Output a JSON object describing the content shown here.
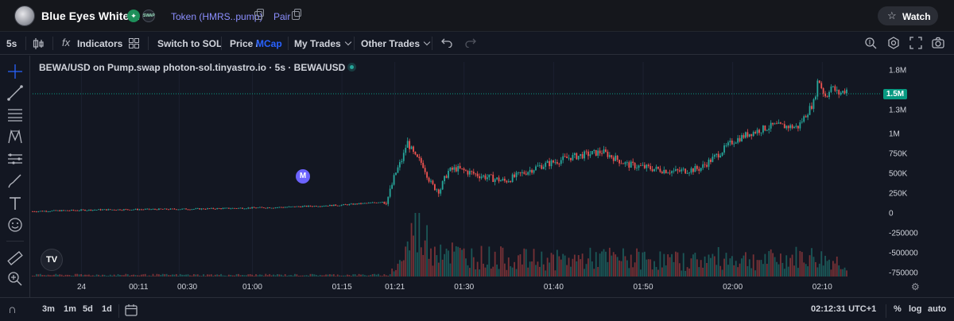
{
  "header": {
    "token_name": "Blue Eyes White…",
    "token_link": "Token (HMRS..pump)",
    "pair_link": "Pair",
    "swap_badge": "SWAP",
    "watch_label": "Watch"
  },
  "toolbar": {
    "interval": "5s",
    "indicators": "Indicators",
    "fx": "fx",
    "switch": "Switch to SOL",
    "price": "Price /",
    "mcap": "MCap",
    "my_trades": "My Trades",
    "other_trades": "Other Trades"
  },
  "chart": {
    "title": "BEWA/USD on Pump.swap photon-sol.tinyastro.io · 5s · BEWA/USD",
    "marker": "M",
    "tv_logo": "TV",
    "current_price": "1.5M",
    "accent": "#089981",
    "up_color": "#26a69a",
    "down_color": "#ef5350"
  },
  "chart_data": {
    "type": "candlestick",
    "y_axis_labels": [
      "1.8M",
      "1.5M",
      "1.3M",
      "1M",
      "750K",
      "500K",
      "250K",
      "0",
      "-250000",
      "-500000",
      "-750000"
    ],
    "x_axis_labels": [
      "24",
      "00:11",
      "00:30",
      "01:00",
      "01:15",
      "01:21",
      "01:30",
      "01:40",
      "01:50",
      "02:00",
      "02:10"
    ],
    "ylim": [
      -800000,
      1900000
    ],
    "current_value": 1500000,
    "price_series": {
      "x": [
        0,
        0.08,
        0.2,
        0.3,
        0.38,
        0.42,
        0.435,
        0.44,
        0.445,
        0.455,
        0.46,
        0.47,
        0.476,
        0.48,
        0.49,
        0.5,
        0.51,
        0.52,
        0.55,
        0.58,
        0.62,
        0.66,
        0.7,
        0.73,
        0.76,
        0.79,
        0.82,
        0.84,
        0.86,
        0.88,
        0.91,
        0.94,
        0.96,
        0.965,
        0.97,
        0.975,
        0.98,
        0.99,
        1.0
      ],
      "y": [
        20000,
        40000,
        50000,
        70000,
        100000,
        130000,
        150000,
        300000,
        480000,
        700000,
        900000,
        700000,
        650000,
        600000,
        350000,
        280000,
        520000,
        560000,
        470000,
        400000,
        580000,
        700000,
        770000,
        610000,
        560000,
        520000,
        560000,
        720000,
        900000,
        1000000,
        1100000,
        1080000,
        1400000,
        1700000,
        1550000,
        1450000,
        1600000,
        1500000,
        1550000
      ]
    },
    "volume_series": {
      "x": [
        0.44,
        0.45,
        0.46,
        0.47,
        0.48,
        0.49,
        0.5,
        0.52,
        0.55,
        0.6,
        0.65,
        0.7,
        0.75,
        0.8,
        0.85,
        0.9,
        0.95,
        0.97,
        1.0
      ],
      "values": [
        50000,
        120000,
        250000,
        500000,
        380000,
        260000,
        300000,
        200000,
        180000,
        160000,
        150000,
        170000,
        160000,
        140000,
        170000,
        150000,
        180000,
        160000,
        120000
      ]
    }
  },
  "time_axis": {
    "clock": "02:12:31 UTC+1"
  },
  "bottombar": {
    "r1": "3m",
    "r2": "1m",
    "r3": "5d",
    "r4": "1d",
    "pct": "%",
    "log": "log",
    "auto": "auto"
  },
  "icons": {
    "candles": "candles-icon",
    "layout": "grid-icon",
    "undo": "undo-icon",
    "redo": "redo-icon",
    "crosshair": "crosshair-icon",
    "trendline": "trendline-icon",
    "magnet": "magnet-icon"
  }
}
